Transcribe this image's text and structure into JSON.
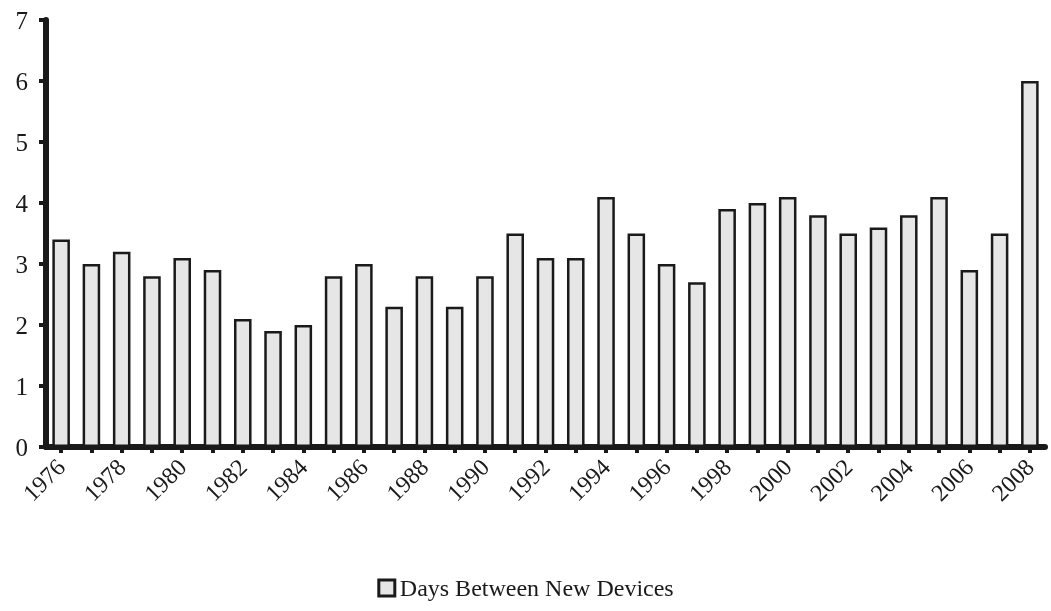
{
  "chart_data": {
    "type": "bar",
    "categories": [
      "1976",
      null,
      "1978",
      null,
      "1980",
      null,
      "1982",
      null,
      "1984",
      null,
      "1986",
      null,
      "1988",
      null,
      "1990",
      null,
      "1992",
      null,
      "1994",
      null,
      "1996",
      null,
      "1998",
      null,
      "2000",
      null,
      "2002",
      null,
      "2004",
      null,
      "2006",
      null,
      "2008"
    ],
    "series": [
      {
        "name": "Days Between New Devices",
        "color": "#e6e6e6",
        "values": [
          3.4,
          3.0,
          3.2,
          2.8,
          3.1,
          2.9,
          2.1,
          1.9,
          2.0,
          2.8,
          3.0,
          2.3,
          2.8,
          2.3,
          2.8,
          3.5,
          3.1,
          3.1,
          4.1,
          3.5,
          3.0,
          2.7,
          3.9,
          4.0,
          4.1,
          3.8,
          3.5,
          3.6,
          3.8,
          4.1,
          2.9,
          3.5,
          6.0
        ]
      }
    ],
    "ylim": [
      0,
      7
    ],
    "yticks": [
      0,
      1,
      2,
      3,
      4,
      5,
      6,
      7
    ],
    "grid": false,
    "legend": "bottom"
  }
}
